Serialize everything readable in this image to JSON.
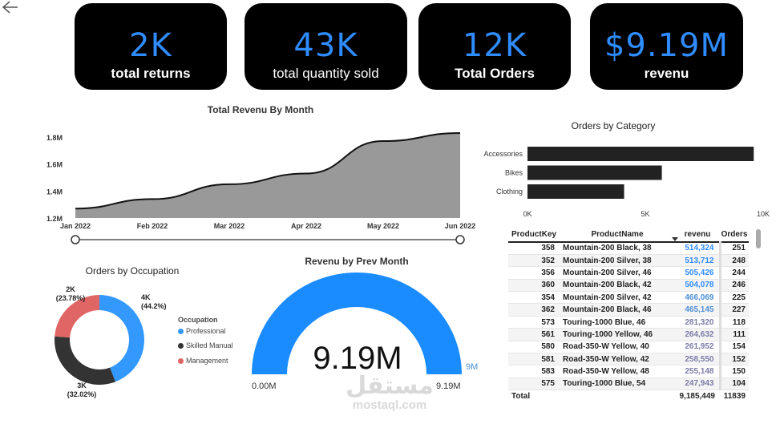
{
  "kpis": [
    {
      "value": "2K",
      "label": "total returns"
    },
    {
      "value": "43K",
      "label": "total quantity sold"
    },
    {
      "value": "12K",
      "label": "Total Orders"
    },
    {
      "value": "$9.19M",
      "label": "revenu"
    }
  ],
  "revenue_chart": {
    "title": "Total Revenu By Month",
    "y_ticks": [
      "1.8M",
      "1.6M",
      "1.4M",
      "1.2M"
    ],
    "x_ticks": [
      "Jan 2022",
      "Feb 2022",
      "Mar 2022",
      "Apr 2022",
      "May 2022",
      "Jun 2022"
    ],
    "fill_color": "#999999"
  },
  "category_chart": {
    "title": "Orders by Category",
    "x_ticks": [
      "0K",
      "5K",
      "10K"
    ]
  },
  "occupation_chart": {
    "title": "Orders by Occupation",
    "legend_title": "Occupation",
    "labels": [
      {
        "value": "4K",
        "pct": "(44.2%)"
      },
      {
        "value": "3K",
        "pct": "(32.02%)"
      },
      {
        "value": "2K",
        "pct": "(23.78%)"
      }
    ]
  },
  "gauge": {
    "title": "Revenu by Prev Month",
    "value_label": "9.19M",
    "min_label": "0.00M",
    "max_label": "9.19M",
    "target_label": "9M",
    "color": "#1a8cff"
  },
  "table": {
    "headers": {
      "key": "ProductKey",
      "name": "ProductName",
      "rev": "revenu",
      "ord": "Orders"
    },
    "rows": [
      {
        "key": "358",
        "name": "Mountain-200 Black, 38",
        "rev": "514,324",
        "ord": "251",
        "color": "#2f8cff"
      },
      {
        "key": "352",
        "name": "Mountain-200 Silver, 38",
        "rev": "513,712",
        "ord": "248",
        "color": "#2f8cff"
      },
      {
        "key": "356",
        "name": "Mountain-200 Silver, 46",
        "rev": "505,426",
        "ord": "244",
        "color": "#2f8cff"
      },
      {
        "key": "360",
        "name": "Mountain-200 Black, 42",
        "rev": "504,078",
        "ord": "246",
        "color": "#2f8cff"
      },
      {
        "key": "354",
        "name": "Mountain-200 Silver, 42",
        "rev": "466,069",
        "ord": "225",
        "color": "#4d8fd6"
      },
      {
        "key": "362",
        "name": "Mountain-200 Black, 46",
        "rev": "465,145",
        "ord": "227",
        "color": "#4d8fd6"
      },
      {
        "key": "573",
        "name": "Touring-1000 Blue, 46",
        "rev": "281,320",
        "ord": "118",
        "color": "#7b7ba8"
      },
      {
        "key": "561",
        "name": "Touring-1000 Yellow, 46",
        "rev": "264,632",
        "ord": "111",
        "color": "#7b7ba8"
      },
      {
        "key": "580",
        "name": "Road-350-W Yellow, 40",
        "rev": "261,952",
        "ord": "154",
        "color": "#7b7ba8"
      },
      {
        "key": "581",
        "name": "Road-350-W Yellow, 42",
        "rev": "258,550",
        "ord": "152",
        "color": "#7b7ba8"
      },
      {
        "key": "583",
        "name": "Road-350-W Yellow, 48",
        "rev": "255,148",
        "ord": "150",
        "color": "#7b7ba8"
      },
      {
        "key": "575",
        "name": "Touring-1000 Blue, 54",
        "rev": "247,943",
        "ord": "104",
        "color": "#7b7ba8"
      }
    ],
    "total": {
      "label": "Total",
      "rev": "9,185,449",
      "ord": "11839"
    }
  },
  "watermark": {
    "arabic": "مستقل",
    "latin": "mostaql.com"
  },
  "chart_data": [
    {
      "type": "area",
      "title": "Total Revenu By Month",
      "x": [
        "Jan 2022",
        "Feb 2022",
        "Mar 2022",
        "Apr 2022",
        "May 2022",
        "Jun 2022"
      ],
      "values": [
        1.27,
        1.34,
        1.45,
        1.53,
        1.77,
        1.83
      ],
      "ylim": [
        1.2,
        1.8
      ],
      "grid": false
    },
    {
      "type": "bar",
      "title": "Orders by Category",
      "categories": [
        "Accessories",
        "Bikes",
        "Clothing"
      ],
      "values": [
        9.6,
        5.7,
        4.1
      ],
      "xlim": [
        0,
        10
      ],
      "orientation": "horizontal"
    },
    {
      "type": "pie",
      "title": "Orders by Occupation",
      "categories": [
        "Professional",
        "Skilled Manual",
        "Management"
      ],
      "values": [
        44.2,
        32.02,
        23.78
      ],
      "colors": [
        "#3399ff",
        "#333333",
        "#e06666"
      ],
      "legend": "right"
    }
  ]
}
